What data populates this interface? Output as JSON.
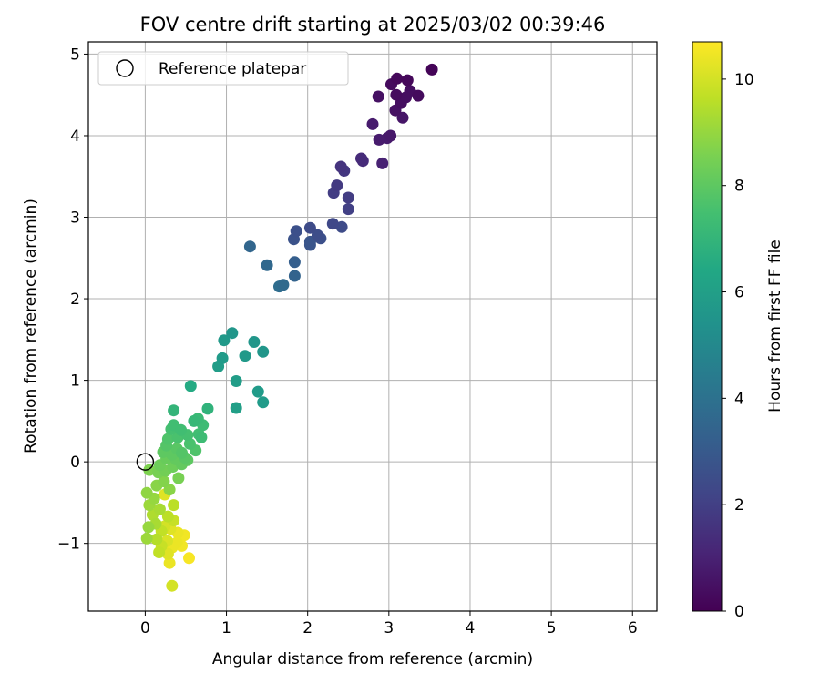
{
  "chart_data": {
    "type": "scatter",
    "title": "FOV centre drift starting at 2025/03/02 00:39:46",
    "xlabel": "Angular distance from reference (arcmin)",
    "ylabel": "Rotation from reference (arcmin)",
    "xlim": [
      -0.7,
      6.3
    ],
    "ylim": [
      -1.83,
      5.15
    ],
    "xticks": [
      0,
      1,
      2,
      3,
      4,
      5,
      6
    ],
    "yticks": [
      -1,
      0,
      1,
      2,
      3,
      4,
      5
    ],
    "grid": true,
    "legend": {
      "label": "Reference platepar",
      "placement": "top-left",
      "marker": "open-circle"
    },
    "reference_point": {
      "x": 0,
      "y": 0
    },
    "colormap": "viridis",
    "colorbar": {
      "label": "Hours from first FF file",
      "range": [
        0,
        10.7
      ],
      "ticks": [
        0,
        2,
        4,
        6,
        8,
        10
      ]
    },
    "series": [
      {
        "values": [
          {
            "x": 3.53,
            "y": 4.81,
            "c": 0.1
          },
          {
            "x": 3.1,
            "y": 4.7,
            "c": 0.2
          },
          {
            "x": 3.03,
            "y": 4.63,
            "c": 0.3
          },
          {
            "x": 3.23,
            "y": 4.68,
            "c": 0.2
          },
          {
            "x": 3.36,
            "y": 4.49,
            "c": 0.3
          },
          {
            "x": 3.21,
            "y": 4.47,
            "c": 0.4
          },
          {
            "x": 3.09,
            "y": 4.5,
            "c": 0.3
          },
          {
            "x": 2.87,
            "y": 4.48,
            "c": 0.5
          },
          {
            "x": 3.15,
            "y": 4.4,
            "c": 0.4
          },
          {
            "x": 3.08,
            "y": 4.31,
            "c": 0.5
          },
          {
            "x": 3.17,
            "y": 4.22,
            "c": 0.6
          },
          {
            "x": 3.26,
            "y": 4.55,
            "c": 0.4
          },
          {
            "x": 2.8,
            "y": 4.14,
            "c": 0.8
          },
          {
            "x": 3.02,
            "y": 4.0,
            "c": 0.7
          },
          {
            "x": 2.98,
            "y": 3.97,
            "c": 0.8
          },
          {
            "x": 2.88,
            "y": 3.95,
            "c": 0.8
          },
          {
            "x": 2.92,
            "y": 3.66,
            "c": 1.0
          },
          {
            "x": 2.66,
            "y": 3.72,
            "c": 1.3
          },
          {
            "x": 2.68,
            "y": 3.69,
            "c": 1.3
          },
          {
            "x": 2.41,
            "y": 3.62,
            "c": 1.6
          },
          {
            "x": 2.45,
            "y": 3.57,
            "c": 1.7
          },
          {
            "x": 2.36,
            "y": 3.39,
            "c": 1.8
          },
          {
            "x": 2.32,
            "y": 3.3,
            "c": 1.9
          },
          {
            "x": 2.5,
            "y": 3.24,
            "c": 1.9
          },
          {
            "x": 2.5,
            "y": 3.1,
            "c": 2.0
          },
          {
            "x": 2.31,
            "y": 2.92,
            "c": 2.3
          },
          {
            "x": 2.03,
            "y": 2.87,
            "c": 2.4
          },
          {
            "x": 2.42,
            "y": 2.88,
            "c": 2.4
          },
          {
            "x": 1.86,
            "y": 2.83,
            "c": 2.6
          },
          {
            "x": 2.12,
            "y": 2.78,
            "c": 2.5
          },
          {
            "x": 2.16,
            "y": 2.74,
            "c": 2.6
          },
          {
            "x": 1.83,
            "y": 2.73,
            "c": 2.7
          },
          {
            "x": 2.03,
            "y": 2.66,
            "c": 2.8
          },
          {
            "x": 2.03,
            "y": 2.7,
            "c": 2.8
          },
          {
            "x": 1.29,
            "y": 2.64,
            "c": 3.5
          },
          {
            "x": 1.84,
            "y": 2.45,
            "c": 3.2
          },
          {
            "x": 1.5,
            "y": 2.41,
            "c": 3.6
          },
          {
            "x": 1.84,
            "y": 2.28,
            "c": 3.4
          },
          {
            "x": 1.7,
            "y": 2.17,
            "c": 3.7
          },
          {
            "x": 1.65,
            "y": 2.15,
            "c": 3.8
          },
          {
            "x": 1.07,
            "y": 1.58,
            "c": 5.6
          },
          {
            "x": 0.97,
            "y": 1.49,
            "c": 5.7
          },
          {
            "x": 1.34,
            "y": 1.47,
            "c": 5.6
          },
          {
            "x": 1.45,
            "y": 1.35,
            "c": 5.6
          },
          {
            "x": 0.95,
            "y": 1.27,
            "c": 5.8
          },
          {
            "x": 1.23,
            "y": 1.3,
            "c": 5.7
          },
          {
            "x": 0.9,
            "y": 1.17,
            "c": 5.9
          },
          {
            "x": 1.12,
            "y": 0.99,
            "c": 5.9
          },
          {
            "x": 1.39,
            "y": 0.86,
            "c": 5.8
          },
          {
            "x": 1.45,
            "y": 0.73,
            "c": 5.8
          },
          {
            "x": 1.12,
            "y": 0.66,
            "c": 6.0
          },
          {
            "x": 0.56,
            "y": 0.93,
            "c": 6.5
          },
          {
            "x": 0.77,
            "y": 0.65,
            "c": 6.9
          },
          {
            "x": 0.35,
            "y": 0.63,
            "c": 7.0
          },
          {
            "x": 0.65,
            "y": 0.53,
            "c": 7.2
          },
          {
            "x": 0.6,
            "y": 0.5,
            "c": 7.1
          },
          {
            "x": 0.71,
            "y": 0.45,
            "c": 7.3
          },
          {
            "x": 0.35,
            "y": 0.45,
            "c": 7.4
          },
          {
            "x": 0.44,
            "y": 0.39,
            "c": 7.4
          },
          {
            "x": 0.32,
            "y": 0.4,
            "c": 7.5
          },
          {
            "x": 0.66,
            "y": 0.34,
            "c": 7.4
          },
          {
            "x": 0.52,
            "y": 0.33,
            "c": 7.5
          },
          {
            "x": 0.4,
            "y": 0.3,
            "c": 7.6
          },
          {
            "x": 0.28,
            "y": 0.28,
            "c": 7.7
          },
          {
            "x": 0.69,
            "y": 0.3,
            "c": 7.3
          },
          {
            "x": 0.26,
            "y": 0.2,
            "c": 7.8
          },
          {
            "x": 0.55,
            "y": 0.22,
            "c": 7.6
          },
          {
            "x": 0.62,
            "y": 0.14,
            "c": 7.7
          },
          {
            "x": 0.45,
            "y": 0.11,
            "c": 7.8
          },
          {
            "x": 0.39,
            "y": 0.16,
            "c": 7.9
          },
          {
            "x": 0.33,
            "y": 0.09,
            "c": 8.0
          },
          {
            "x": 0.22,
            "y": 0.12,
            "c": 8.0
          },
          {
            "x": 0.49,
            "y": 0.05,
            "c": 7.9
          },
          {
            "x": 0.52,
            "y": 0.02,
            "c": 8.0
          },
          {
            "x": 0.38,
            "y": 0.03,
            "c": 8.1
          },
          {
            "x": 0.26,
            "y": 0.04,
            "c": 8.2
          },
          {
            "x": 0.45,
            "y": -0.03,
            "c": 8.1
          },
          {
            "x": 0.18,
            "y": -0.04,
            "c": 8.3
          },
          {
            "x": 0.34,
            "y": -0.06,
            "c": 8.3
          },
          {
            "x": 0.25,
            "y": -0.11,
            "c": 8.4
          },
          {
            "x": 0.16,
            "y": -0.13,
            "c": 8.5
          },
          {
            "x": 0.05,
            "y": -0.1,
            "c": 8.6
          },
          {
            "x": 0.41,
            "y": -0.2,
            "c": 8.5
          },
          {
            "x": 0.23,
            "y": -0.24,
            "c": 8.7
          },
          {
            "x": 0.14,
            "y": -0.29,
            "c": 8.8
          },
          {
            "x": 0.3,
            "y": -0.34,
            "c": 8.8
          },
          {
            "x": 0.02,
            "y": -0.38,
            "c": 8.9
          },
          {
            "x": 0.11,
            "y": -0.45,
            "c": 9.0
          },
          {
            "x": 0.24,
            "y": -0.4,
            "c": 10.2
          },
          {
            "x": 0.35,
            "y": -0.53,
            "c": 9.6
          },
          {
            "x": 0.05,
            "y": -0.53,
            "c": 9.1
          },
          {
            "x": 0.18,
            "y": -0.58,
            "c": 9.3
          },
          {
            "x": 0.09,
            "y": -0.65,
            "c": 9.4
          },
          {
            "x": 0.28,
            "y": -0.67,
            "c": 9.6
          },
          {
            "x": 0.35,
            "y": -0.72,
            "c": 9.8
          },
          {
            "x": 0.13,
            "y": -0.76,
            "c": 9.3
          },
          {
            "x": 0.24,
            "y": -0.79,
            "c": 10.0
          },
          {
            "x": 0.31,
            "y": -0.82,
            "c": 10.2
          },
          {
            "x": 0.04,
            "y": -0.8,
            "c": 9.0
          },
          {
            "x": 0.2,
            "y": -0.85,
            "c": 9.7
          },
          {
            "x": 0.4,
            "y": -0.87,
            "c": 10.4
          },
          {
            "x": 0.48,
            "y": -0.9,
            "c": 10.5
          },
          {
            "x": 0.02,
            "y": -0.94,
            "c": 9.1
          },
          {
            "x": 0.14,
            "y": -0.95,
            "c": 9.5
          },
          {
            "x": 0.27,
            "y": -0.97,
            "c": 10.1
          },
          {
            "x": 0.39,
            "y": -0.99,
            "c": 10.4
          },
          {
            "x": 0.2,
            "y": -1.03,
            "c": 9.8
          },
          {
            "x": 0.45,
            "y": -1.03,
            "c": 10.5
          },
          {
            "x": 0.33,
            "y": -1.05,
            "c": 10.4
          },
          {
            "x": 0.17,
            "y": -1.11,
            "c": 9.7
          },
          {
            "x": 0.28,
            "y": -1.13,
            "c": 10.2
          },
          {
            "x": 0.54,
            "y": -1.18,
            "c": 10.6
          },
          {
            "x": 0.3,
            "y": -1.24,
            "c": 10.4
          },
          {
            "x": 0.33,
            "y": -1.52,
            "c": 10.0
          }
        ]
      }
    ]
  }
}
